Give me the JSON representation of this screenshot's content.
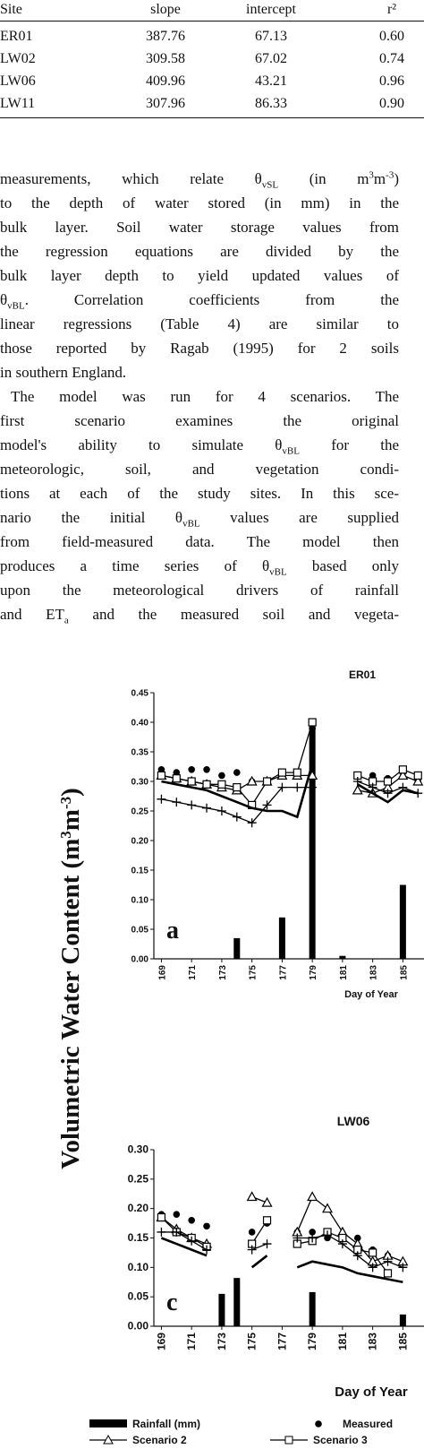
{
  "table": {
    "header": [
      "Site",
      "slope",
      "intercept",
      "r²"
    ],
    "rows": [
      [
        "ER01",
        "387.76",
        "67.13",
        "0.60"
      ],
      [
        "LW02",
        "309.58",
        "67.02",
        "0.74"
      ],
      [
        "LW06",
        "409.96",
        "43.21",
        "0.96"
      ],
      [
        "LW11",
        "307.96",
        "86.33",
        "0.90"
      ]
    ]
  },
  "body": {
    "paragraphs": [
      [
        [
          "measurements, which relate θ",
          {
            "sub": "vSL"
          },
          " (in m",
          {
            "sup": "3"
          },
          "m",
          {
            "sup": "-3"
          },
          ")"
        ],
        [
          "to the depth of water stored (in mm) in the"
        ],
        [
          "bulk layer. Soil water storage values from"
        ],
        [
          "the regression equations are divided by the"
        ],
        [
          "bulk layer depth to yield updated values of"
        ],
        [
          "θ",
          {
            "sub": "vBL"
          },
          ". Correlation coefficients from the"
        ],
        [
          "linear regressions (Table 4) are similar to"
        ],
        [
          "those reported by Ragab (1995) for 2 soils"
        ],
        [
          "in southern England."
        ]
      ],
      [
        [
          "The model was run for 4 scenarios. The"
        ],
        [
          "first scenario examines the original"
        ],
        [
          "model's ability to simulate θ",
          {
            "sub": "vBL"
          },
          " for the"
        ],
        [
          "meteorologic, soil, and vegetation condi-"
        ],
        [
          "tions at each of the study sites. In this sce-"
        ],
        [
          "nario the initial θ",
          {
            "sub": "vBL"
          },
          " values are supplied"
        ],
        [
          "from field-measured data. The model then"
        ],
        [
          "produces a time series of θ",
          {
            "sub": "vBL"
          },
          " based only"
        ],
        [
          "upon the meteorological drivers of rainfall"
        ],
        [
          "and ET",
          {
            "sub": "a"
          },
          " and the measured soil and vegeta-"
        ]
      ]
    ]
  },
  "chart_data": [
    {
      "type": "line",
      "title": "ER01",
      "panel_label": "a",
      "xlabel": "Day of Year",
      "ylabel": [
        "Volumetric Water Content (m",
        {
          "sup": "3"
        },
        "m",
        {
          "sup": "-3"
        },
        ")"
      ],
      "x": [
        169,
        170,
        171,
        172,
        173,
        174,
        175,
        176,
        177,
        178,
        179,
        180,
        181,
        182,
        183,
        184,
        185,
        186
      ],
      "xlim": [
        168.5,
        186.4
      ],
      "xticks": [
        169,
        171,
        173,
        175,
        177,
        179,
        181,
        183,
        185
      ],
      "ylim": [
        0,
        0.45
      ],
      "yticks": [
        {
          "value": 0,
          "label": "0.00"
        },
        0.05,
        {
          "value": 0.1,
          "label": "0.10"
        },
        0.15,
        {
          "value": 0.2,
          "label": "0.20"
        },
        0.25,
        {
          "value": 0.3,
          "label": "0.30"
        },
        0.35,
        {
          "value": 0.4,
          "label": "0.40"
        },
        0.45
      ],
      "series": [
        {
          "type": "bar",
          "color": "#000000",
          "values": [
            0,
            0,
            0,
            0,
            0,
            0.035,
            0,
            0,
            0.07,
            0,
            0.39,
            0,
            0.005,
            0,
            0,
            0,
            0.125,
            0
          ]
        },
        {
          "marker": "circle",
          "line": false,
          "color": "#000000",
          "values": [
            0.32,
            0.315,
            0.32,
            0.32,
            0.31,
            0.315,
            0.3,
            0.3,
            0.31,
            0.31,
            0.39,
            null,
            null,
            0.31,
            0.31,
            0.305,
            0.315,
            0.3
          ]
        },
        {
          "marker": "triangle",
          "line": true,
          "color": "#000000",
          "values": [
            0.31,
            0.305,
            0.3,
            0.295,
            0.29,
            0.285,
            0.3,
            0.3,
            0.31,
            0.31,
            0.31,
            null,
            null,
            0.285,
            0.28,
            0.29,
            0.31,
            0.3
          ]
        },
        {
          "marker": "square",
          "line": true,
          "color": "#000000",
          "values": [
            0.31,
            0.305,
            0.3,
            0.295,
            0.295,
            0.29,
            0.26,
            0.3,
            0.315,
            0.315,
            0.4,
            null,
            null,
            0.31,
            0.3,
            0.3,
            0.32,
            0.31
          ]
        },
        {
          "marker": "plus",
          "line": true,
          "color": "#000000",
          "values": [
            0.27,
            0.265,
            0.26,
            0.255,
            0.25,
            0.24,
            0.23,
            0.26,
            0.29,
            0.29,
            0.29,
            null,
            null,
            0.3,
            0.29,
            0.28,
            0.29,
            0.28
          ]
        },
        {
          "marker": "none",
          "line": true,
          "color": "#000000",
          "values": [
            0.3,
            0.295,
            0.29,
            0.285,
            0.275,
            0.265,
            0.255,
            0.25,
            0.25,
            0.24,
            0.33,
            null,
            null,
            0.295,
            0.28,
            0.265,
            0.285,
            0.28
          ]
        }
      ]
    },
    {
      "type": "line",
      "title": "LW06",
      "panel_label": "c",
      "xlabel": "Day of Year",
      "x": [
        169,
        170,
        171,
        172,
        173,
        174,
        175,
        176,
        177,
        178,
        179,
        180,
        181,
        182,
        183,
        184,
        185,
        186
      ],
      "xlim": [
        168.5,
        186.4
      ],
      "xticks": [
        169,
        171,
        173,
        175,
        177,
        179,
        181,
        183,
        185
      ],
      "ylim": [
        0,
        0.3
      ],
      "yticks": [
        {
          "value": 0,
          "label": "0.00"
        },
        0.05,
        {
          "value": 0.1,
          "label": "0.10"
        },
        0.15,
        {
          "value": 0.2,
          "label": "0.20"
        },
        0.25,
        {
          "value": 0.3,
          "label": "0.30"
        }
      ],
      "series": [
        {
          "name": "Rainfall (mm)",
          "type": "bar",
          "color": "#000000",
          "values": [
            0,
            0,
            0,
            0,
            0.055,
            0.082,
            0,
            0,
            0,
            0,
            0.058,
            0,
            0,
            0,
            0,
            0,
            0.02,
            0
          ]
        },
        {
          "name": "Measured",
          "marker": "circle",
          "line": false,
          "color": "#000000",
          "values": [
            0.19,
            0.19,
            0.18,
            0.17,
            null,
            null,
            0.16,
            0.175,
            null,
            0.16,
            0.16,
            0.15,
            0.15,
            0.15,
            0.13,
            0.12,
            null,
            null
          ]
        },
        {
          "name": "Scenario 2",
          "marker": "triangle",
          "line": true,
          "color": "#000000",
          "values": [
            0.185,
            0.165,
            0.15,
            0.14,
            null,
            null,
            0.22,
            0.21,
            null,
            0.16,
            0.22,
            0.2,
            0.16,
            0.14,
            0.11,
            0.12,
            0.11,
            null
          ]
        },
        {
          "name": "Scenario 3",
          "marker": "square",
          "line": true,
          "color": "#000000",
          "values": [
            0.185,
            0.16,
            0.15,
            0.135,
            null,
            null,
            0.14,
            0.18,
            null,
            0.14,
            0.145,
            0.16,
            0.15,
            0.13,
            0.125,
            0.09,
            null,
            null
          ]
        },
        {
          "marker": "plus",
          "line": true,
          "color": "#000000",
          "values": [
            0.16,
            0.16,
            0.145,
            0.13,
            null,
            null,
            0.13,
            0.14,
            null,
            0.15,
            0.15,
            0.155,
            0.14,
            0.12,
            0.1,
            0.11,
            0.1,
            null
          ]
        },
        {
          "marker": "none",
          "line": true,
          "color": "#000000",
          "values": [
            0.15,
            0.14,
            0.13,
            0.12,
            null,
            null,
            0.1,
            0.12,
            null,
            0.1,
            0.11,
            0.105,
            0.1,
            0.09,
            0.085,
            0.08,
            0.075,
            null
          ]
        }
      ]
    }
  ]
}
